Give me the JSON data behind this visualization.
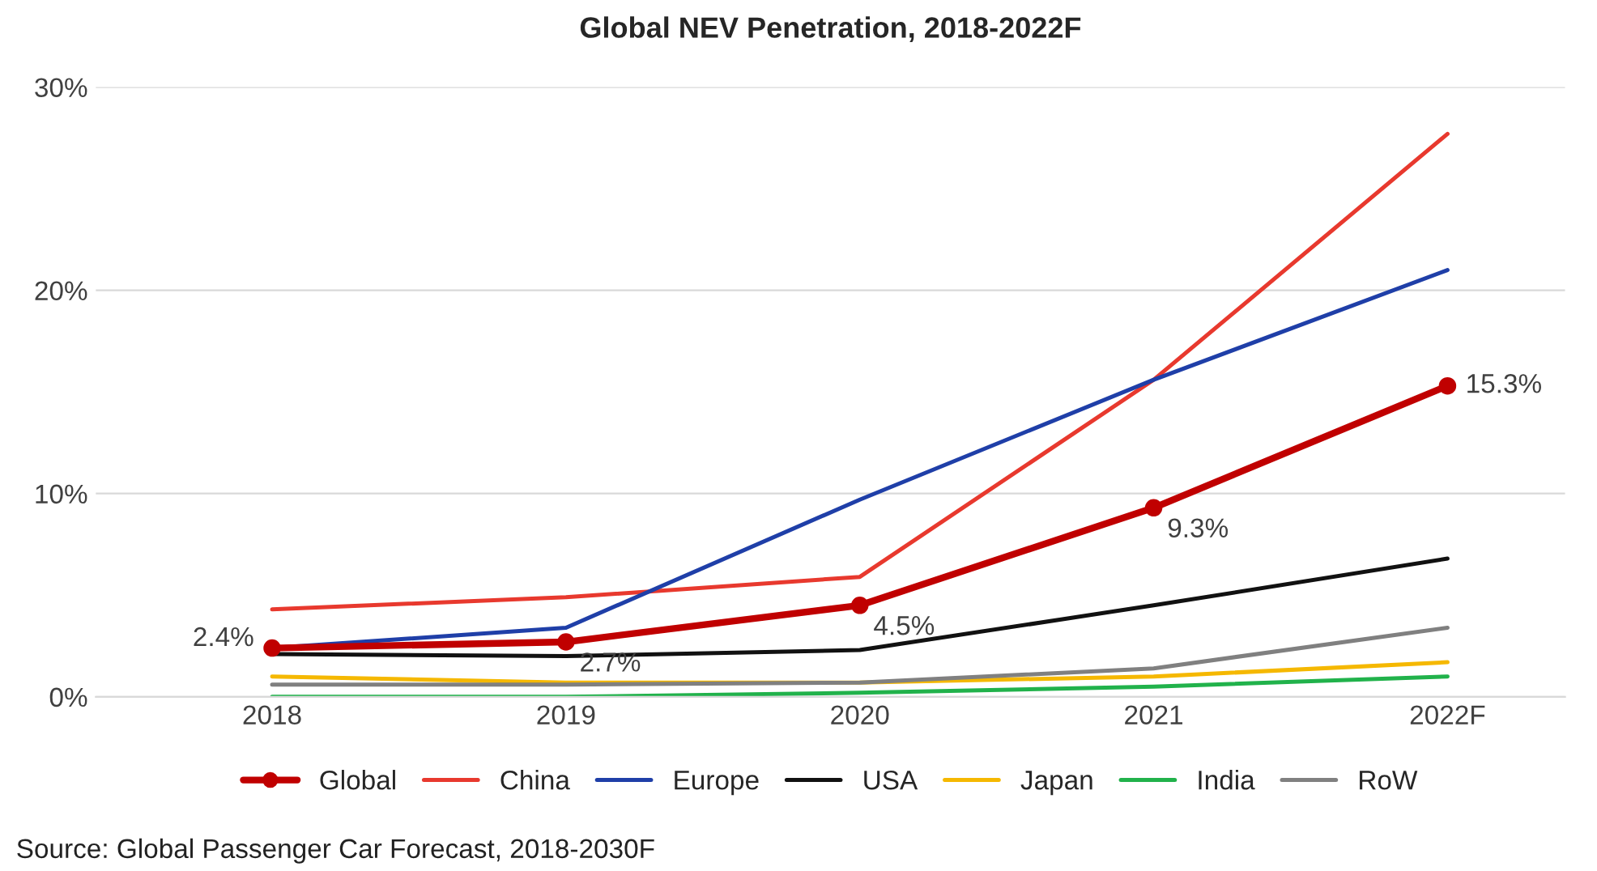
{
  "chart_data": {
    "type": "line",
    "title": "Global NEV Penetration, 2018-2022F",
    "categories": [
      "2018",
      "2019",
      "2020",
      "2021",
      "2022F"
    ],
    "series": [
      {
        "name": "Global",
        "color": "#c00000",
        "values": [
          2.4,
          2.7,
          4.5,
          9.3,
          15.3
        ],
        "marker": "circle",
        "value_labels": [
          "2.4%",
          "2.7%",
          "4.5%",
          "9.3%",
          "15.3%"
        ]
      },
      {
        "name": "China",
        "color": "#e8392e",
        "values": [
          4.3,
          4.9,
          5.9,
          15.6,
          27.7
        ]
      },
      {
        "name": "Europe",
        "color": "#1f3fa8",
        "values": [
          2.4,
          3.4,
          9.7,
          15.6,
          21.0
        ]
      },
      {
        "name": "USA",
        "color": "#111111",
        "values": [
          2.1,
          2.0,
          2.3,
          4.5,
          6.8
        ]
      },
      {
        "name": "Japan",
        "color": "#f5b800",
        "values": [
          1.0,
          0.7,
          0.7,
          1.0,
          1.7
        ]
      },
      {
        "name": "India",
        "color": "#21b24b",
        "values": [
          0.0,
          0.0,
          0.2,
          0.5,
          1.0
        ]
      },
      {
        "name": "RoW",
        "color": "#808080",
        "values": [
          0.6,
          0.6,
          0.7,
          1.4,
          3.4
        ]
      }
    ],
    "ylim": [
      0,
      30
    ],
    "yticks": [
      {
        "value": 0,
        "label": "0%"
      },
      {
        "value": 10,
        "label": "10%"
      },
      {
        "value": 20,
        "label": "20%"
      },
      {
        "value": 30,
        "label": "30%"
      }
    ],
    "grid": "y",
    "legend": "bottom",
    "annotations": [
      "Source: Global Passenger Car Forecast, 2018-2030F"
    ]
  }
}
